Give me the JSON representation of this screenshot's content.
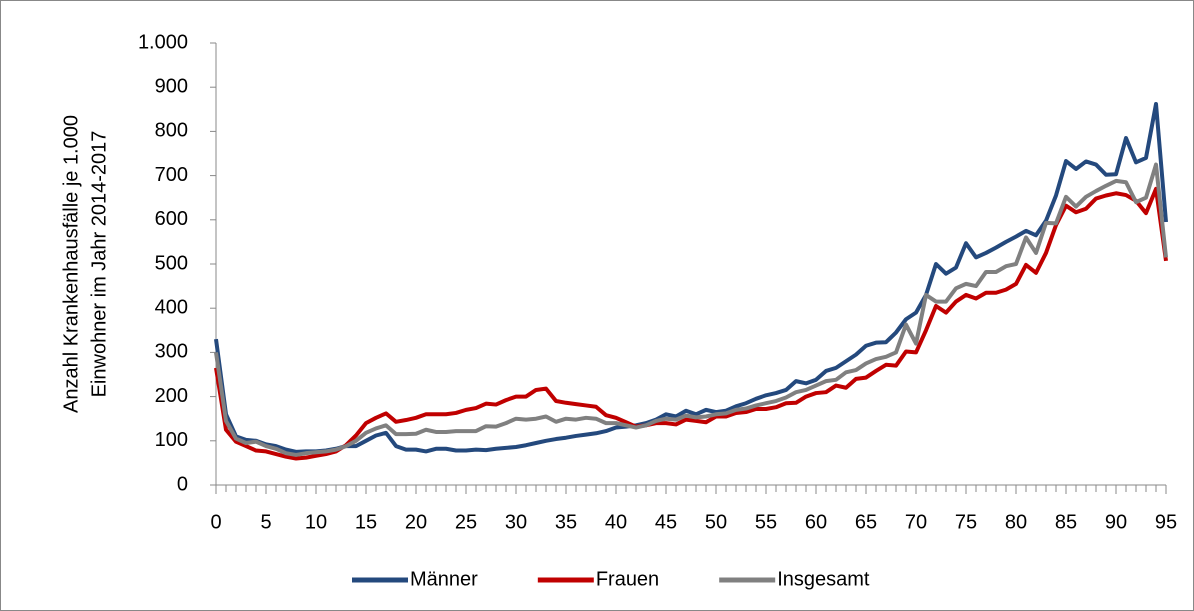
{
  "chart_data": {
    "type": "line",
    "ylabel": [
      "Anzahl Krankenhausfälle je 1.000",
      "Einwohner im Jahr 2014-2017"
    ],
    "x": [
      0,
      1,
      2,
      3,
      4,
      5,
      6,
      7,
      8,
      9,
      10,
      11,
      12,
      13,
      14,
      15,
      16,
      17,
      18,
      19,
      20,
      21,
      22,
      23,
      24,
      25,
      26,
      27,
      28,
      29,
      30,
      31,
      32,
      33,
      34,
      35,
      36,
      37,
      38,
      39,
      40,
      41,
      42,
      43,
      44,
      45,
      46,
      47,
      48,
      49,
      50,
      51,
      52,
      53,
      54,
      55,
      56,
      57,
      58,
      59,
      60,
      61,
      62,
      63,
      64,
      65,
      66,
      67,
      68,
      69,
      70,
      71,
      72,
      73,
      74,
      75,
      76,
      77,
      78,
      79,
      80,
      81,
      82,
      83,
      84,
      85,
      86,
      87,
      88,
      89,
      90,
      91,
      92,
      93,
      94,
      95
    ],
    "xlim": [
      0,
      95
    ],
    "xticks": [
      0,
      5,
      10,
      15,
      20,
      25,
      30,
      35,
      40,
      45,
      50,
      55,
      60,
      65,
      70,
      75,
      80,
      85,
      90,
      95
    ],
    "ylim": [
      0,
      1000
    ],
    "yticks": [
      0,
      100,
      200,
      300,
      400,
      500,
      600,
      700,
      800,
      900,
      {
        "value": 1000,
        "label": "1.000"
      }
    ],
    "legend": "bottom",
    "series": [
      {
        "name": "Männer",
        "color": "#24497d",
        "values": [
          330,
          160,
          110,
          102,
          100,
          92,
          88,
          80,
          75,
          76,
          76,
          78,
          82,
          88,
          88,
          100,
          112,
          118,
          88,
          80,
          80,
          76,
          82,
          82,
          78,
          78,
          80,
          79,
          82,
          84,
          86,
          90,
          95,
          100,
          104,
          107,
          111,
          114,
          117,
          122,
          130,
          132,
          135,
          140,
          148,
          160,
          155,
          168,
          160,
          170,
          165,
          168,
          178,
          185,
          195,
          203,
          208,
          215,
          235,
          230,
          238,
          258,
          265,
          280,
          295,
          315,
          322,
          323,
          345,
          375,
          390,
          430,
          500,
          478,
          492,
          547,
          515,
          525,
          537,
          550,
          562,
          575,
          565,
          598,
          655,
          733,
          715,
          732,
          725,
          702,
          703,
          785,
          730,
          740,
          862,
          595
        ]
      },
      {
        "name": "Frauen",
        "color": "#c00000",
        "values": [
          265,
          125,
          98,
          88,
          78,
          76,
          70,
          64,
          60,
          62,
          66,
          70,
          76,
          90,
          112,
          140,
          152,
          162,
          143,
          147,
          152,
          160,
          160,
          160,
          163,
          170,
          174,
          184,
          182,
          192,
          200,
          200,
          215,
          218,
          190,
          186,
          183,
          180,
          177,
          158,
          152,
          142,
          132,
          135,
          140,
          140,
          137,
          148,
          145,
          142,
          155,
          155,
          163,
          165,
          172,
          172,
          176,
          185,
          186,
          200,
          208,
          210,
          225,
          220,
          240,
          243,
          258,
          272,
          270,
          302,
          300,
          350,
          405,
          390,
          415,
          430,
          422,
          435,
          435,
          442,
          455,
          498,
          480,
          525,
          588,
          632,
          617,
          625,
          648,
          655,
          660,
          656,
          643,
          615,
          670,
          507
        ]
      },
      {
        "name": "Insgesamt",
        "color": "#808080",
        "values": [
          300,
          145,
          105,
          95,
          98,
          88,
          82,
          72,
          68,
          72,
          74,
          76,
          80,
          88,
          100,
          118,
          128,
          135,
          115,
          115,
          116,
          125,
          120,
          120,
          122,
          122,
          122,
          133,
          132,
          140,
          150,
          148,
          150,
          155,
          143,
          150,
          148,
          152,
          150,
          140,
          140,
          135,
          130,
          135,
          145,
          150,
          148,
          157,
          153,
          155,
          160,
          162,
          170,
          173,
          180,
          185,
          190,
          198,
          210,
          215,
          225,
          235,
          238,
          255,
          260,
          275,
          285,
          290,
          300,
          363,
          320,
          430,
          415,
          415,
          445,
          455,
          450,
          482,
          482,
          495,
          500,
          560,
          525,
          593,
          592,
          652,
          630,
          652,
          665,
          677,
          688,
          685,
          640,
          650,
          725,
          515
        ]
      }
    ]
  }
}
